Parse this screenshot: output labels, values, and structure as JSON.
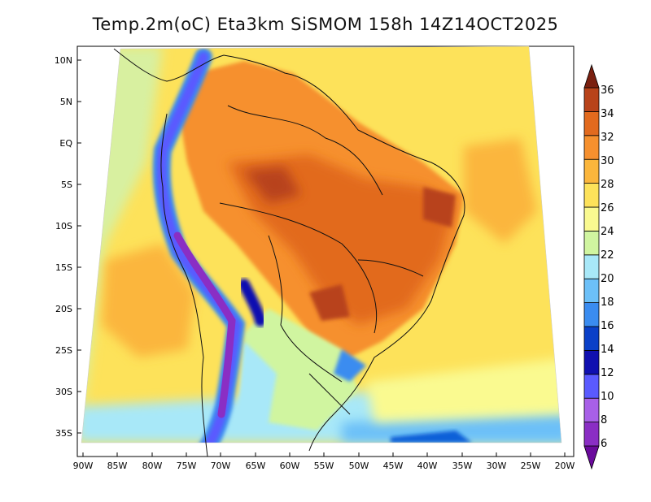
{
  "title": "Temp.2m(oC) Eta3km SiSMOM 158h 14Z14OCT2025",
  "axes": {
    "lat_labels": [
      "10N",
      "5N",
      "EQ",
      "5S",
      "10S",
      "15S",
      "20S",
      "25S",
      "30S",
      "35S"
    ],
    "lon_labels": [
      "90W",
      "85W",
      "80W",
      "75W",
      "70W",
      "65W",
      "60W",
      "55W",
      "50W",
      "45W",
      "40W",
      "35W",
      "30W",
      "25W",
      "20W"
    ]
  },
  "colorbar": {
    "labels": [
      "6",
      "8",
      "10",
      "12",
      "14",
      "16",
      "18",
      "20",
      "22",
      "24",
      "26",
      "28",
      "30",
      "32",
      "34",
      "36"
    ],
    "colors": [
      "#6a0a9c",
      "#8a2ec4",
      "#a860e8",
      "#5a5aff",
      "#1010b0",
      "#0a40c8",
      "#3a8cf0",
      "#6cc0f8",
      "#a8e8f8",
      "#d0f5a0",
      "#fafa90",
      "#fde25a",
      "#fbb63c",
      "#f6902e",
      "#e26a1e",
      "#b8431a",
      "#7a2010"
    ]
  }
}
